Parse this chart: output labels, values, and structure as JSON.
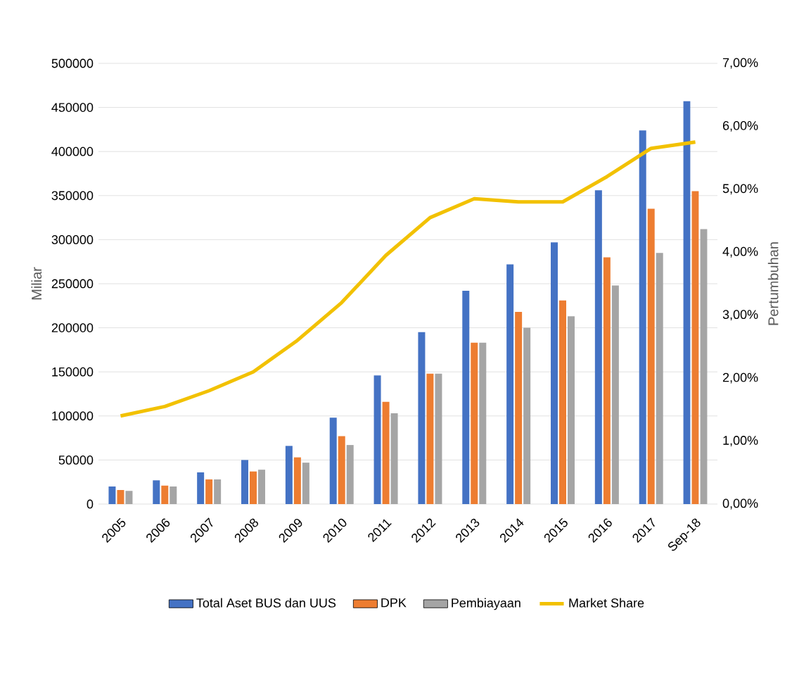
{
  "chart_data": {
    "type": "bar",
    "xlabel": null,
    "ylabel": "Miliar",
    "y2label": "Pertumbuhan",
    "categories": [
      "2005",
      "2006",
      "2007",
      "2008",
      "2009",
      "2010",
      "2011",
      "2012",
      "2013",
      "2014",
      "2015",
      "2016",
      "2017",
      "Sep-18"
    ],
    "series": [
      {
        "name": "Total Aset BUS dan UUS",
        "color": "#4472c4",
        "values": [
          20000,
          27000,
          36000,
          50000,
          66000,
          98000,
          146000,
          195000,
          242000,
          272000,
          297000,
          356000,
          424000,
          457000
        ]
      },
      {
        "name": "DPK",
        "color": "#ed7d31",
        "values": [
          16000,
          21000,
          28000,
          37000,
          53000,
          77000,
          116000,
          148000,
          183000,
          218000,
          231000,
          280000,
          335000,
          355000
        ]
      },
      {
        "name": "Pembiayaan",
        "color": "#a5a5a5",
        "values": [
          15000,
          20000,
          28000,
          39000,
          47000,
          67000,
          103000,
          148000,
          183000,
          200000,
          213000,
          248000,
          285000,
          312000
        ]
      },
      {
        "name": "Market Share",
        "color": "#f2c100",
        "type": "line",
        "axis": "y2",
        "values": [
          1.4,
          1.55,
          1.8,
          2.1,
          2.6,
          3.2,
          3.95,
          4.55,
          4.85,
          4.8,
          4.8,
          5.2,
          5.65,
          5.75
        ]
      }
    ],
    "ylim": [
      0,
      500000
    ],
    "yticks": [
      0,
      50000,
      100000,
      150000,
      200000,
      250000,
      300000,
      350000,
      400000,
      450000,
      500000
    ],
    "y2lim": [
      0,
      7
    ],
    "y2ticks": [
      {
        "value": 0,
        "label": "0,00%"
      },
      {
        "value": 1,
        "label": "1,00%"
      },
      {
        "value": 2,
        "label": "2,00%"
      },
      {
        "value": 3,
        "label": "3,00%"
      },
      {
        "value": 4,
        "label": "4,00%"
      },
      {
        "value": 5,
        "label": "5,00%"
      },
      {
        "value": 6,
        "label": "6,00%"
      },
      {
        "value": 7,
        "label": "7,00%"
      }
    ],
    "grid": "y",
    "legend": "bottom",
    "marker": "none",
    "line_style": "solid"
  }
}
